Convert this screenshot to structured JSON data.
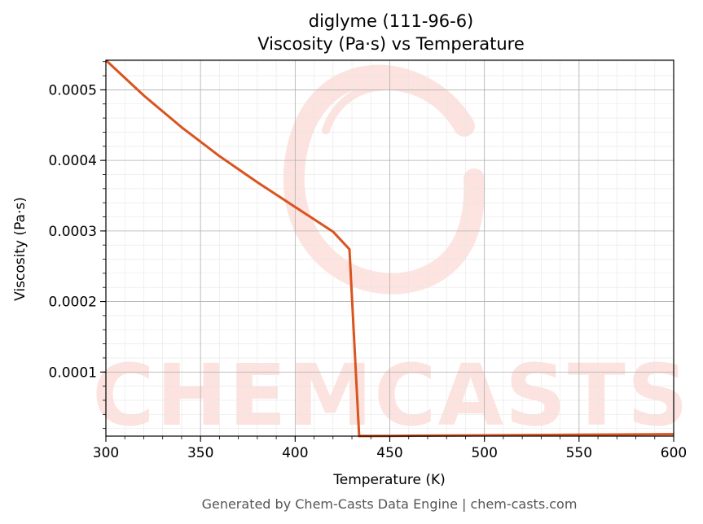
{
  "chart_data": {
    "type": "line",
    "title": "diglyme (111-96-6)",
    "subtitle": "Viscosity (Pa·s) vs Temperature",
    "xlabel": "Temperature (K)",
    "ylabel": "Viscosity (Pa·s)",
    "xlim": [
      300,
      600
    ],
    "ylim": [
      9.2e-06,
      0.000542
    ],
    "x_ticks": [
      300,
      350,
      400,
      450,
      500,
      550,
      600
    ],
    "x_tick_labels": [
      "300",
      "350",
      "400",
      "450",
      "500",
      "550",
      "600"
    ],
    "y_ticks": [
      0.0001,
      0.0002,
      0.0003,
      0.0004,
      0.0005
    ],
    "y_tick_labels": [
      "0.0001",
      "0.0002",
      "0.0003",
      "0.0004",
      "0.0005"
    ],
    "grid": true,
    "minor_grid": true,
    "legend": "none",
    "series": [
      {
        "color": "#d9541e",
        "x": [
          300,
          320,
          340,
          360,
          380,
          400,
          420,
          428.7,
          433.8,
          434.1,
          450,
          500,
          550,
          600
        ],
        "y": [
          0.000542,
          0.000492,
          0.000447,
          0.000406,
          0.000369,
          0.000334,
          0.000299,
          0.000274,
          9.2e-06,
          9.3e-06,
          9.6e-06,
          1.04e-05,
          1.12e-05,
          1.2e-05
        ]
      }
    ]
  },
  "watermark": "CHEMCASTS",
  "footer": "Generated by Chem-Casts Data Engine | chem-casts.com"
}
